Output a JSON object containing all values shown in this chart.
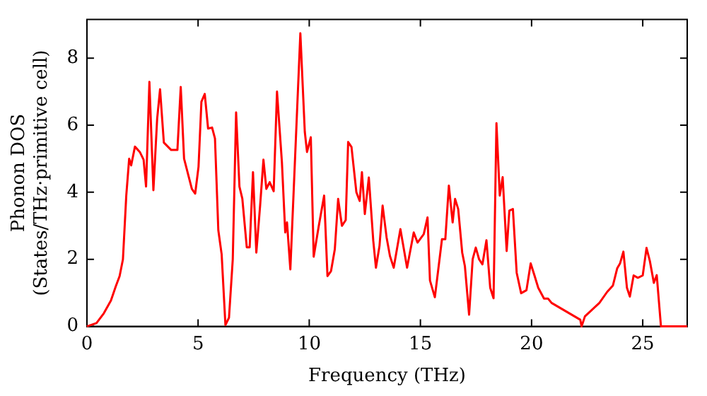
{
  "chart_data": {
    "type": "line",
    "xlabel": "Frequency (THz)",
    "ylabel": "Phonon DOS\n(States/THz·primitive cell)",
    "xlim": [
      0,
      27
    ],
    "xticks": [
      0,
      5,
      10,
      15,
      20,
      25
    ],
    "ylim": [
      0,
      9.15
    ],
    "yticks": [
      0,
      2,
      4,
      6,
      8
    ],
    "grid": false,
    "legend": false,
    "marker": "none",
    "line_style": "solid",
    "series": [
      {
        "color": "#ff0000",
        "x": [
          0,
          0.43,
          0.76,
          1.08,
          1.3,
          1.47,
          1.62,
          1.77,
          1.9,
          1.99,
          2.16,
          2.38,
          2.55,
          2.66,
          2.81,
          2.99,
          3.16,
          3.29,
          3.46,
          3.79,
          4.07,
          4.22,
          4.37,
          4.72,
          4.87,
          5.02,
          5.15,
          5.3,
          5.45,
          5.63,
          5.76,
          5.91,
          6.06,
          6.23,
          6.39,
          6.56,
          6.71,
          6.86,
          6.99,
          7.19,
          7.32,
          7.47,
          7.62,
          7.79,
          7.94,
          8.07,
          8.22,
          8.4,
          8.55,
          8.77,
          8.92,
          9.0,
          9.15,
          9.6,
          9.8,
          9.9,
          10.07,
          10.2,
          10.43,
          10.67,
          10.82,
          10.98,
          11.15,
          11.3,
          11.47,
          11.64,
          11.75,
          11.9,
          12.12,
          12.27,
          12.37,
          12.5,
          12.68,
          12.88,
          13.0,
          13.16,
          13.3,
          13.48,
          13.63,
          13.8,
          14.1,
          14.4,
          14.7,
          14.87,
          15.15,
          15.32,
          15.43,
          15.65,
          15.97,
          16.12,
          16.28,
          16.45,
          16.56,
          16.7,
          16.88,
          17.0,
          17.19,
          17.35,
          17.49,
          17.64,
          17.79,
          17.97,
          18.14,
          18.29,
          18.42,
          18.57,
          18.7,
          18.88,
          19.0,
          19.16,
          19.33,
          19.53,
          19.77,
          19.96,
          20.13,
          20.3,
          20.56,
          20.74,
          20.9,
          22.19,
          22.25,
          22.4,
          23.05,
          23.4,
          23.66,
          23.85,
          23.98,
          24.13,
          24.29,
          24.42,
          24.59,
          24.78,
          25.0,
          25.17,
          25.32,
          25.5,
          25.63,
          25.82,
          27
        ],
        "values": [
          0,
          0.1,
          0.39,
          0.77,
          1.2,
          1.5,
          2.0,
          3.9,
          5.0,
          4.8,
          5.36,
          5.2,
          4.97,
          4.17,
          7.29,
          4.06,
          6.2,
          7.07,
          5.48,
          5.26,
          5.26,
          7.14,
          5.0,
          4.1,
          3.96,
          4.76,
          6.7,
          6.93,
          5.9,
          5.93,
          5.6,
          2.87,
          2.15,
          0.04,
          0.26,
          2.0,
          6.38,
          4.17,
          3.81,
          2.36,
          2.36,
          4.6,
          2.2,
          3.6,
          4.97,
          4.1,
          4.3,
          4.03,
          7.0,
          4.9,
          2.8,
          3.1,
          1.7,
          8.74,
          5.8,
          5.2,
          5.64,
          2.08,
          3.0,
          3.9,
          1.5,
          1.65,
          2.3,
          3.8,
          3.0,
          3.17,
          5.5,
          5.35,
          4.0,
          3.74,
          4.6,
          3.35,
          4.44,
          2.55,
          1.75,
          2.4,
          3.6,
          2.65,
          2.1,
          1.75,
          2.9,
          1.75,
          2.8,
          2.5,
          2.75,
          3.25,
          1.37,
          0.87,
          2.6,
          2.6,
          4.2,
          3.1,
          3.8,
          3.5,
          2.2,
          1.8,
          0.35,
          2.0,
          2.35,
          2.0,
          1.85,
          2.57,
          1.15,
          0.84,
          6.06,
          3.9,
          4.45,
          2.25,
          3.45,
          3.5,
          1.6,
          0.99,
          1.08,
          1.88,
          1.52,
          1.15,
          0.83,
          0.83,
          0.7,
          0.2,
          0,
          0.3,
          0.7,
          1.03,
          1.22,
          1.73,
          1.88,
          2.23,
          1.15,
          0.89,
          1.52,
          1.45,
          1.52,
          2.34,
          1.95,
          1.3,
          1.53,
          0,
          0
        ]
      }
    ]
  }
}
